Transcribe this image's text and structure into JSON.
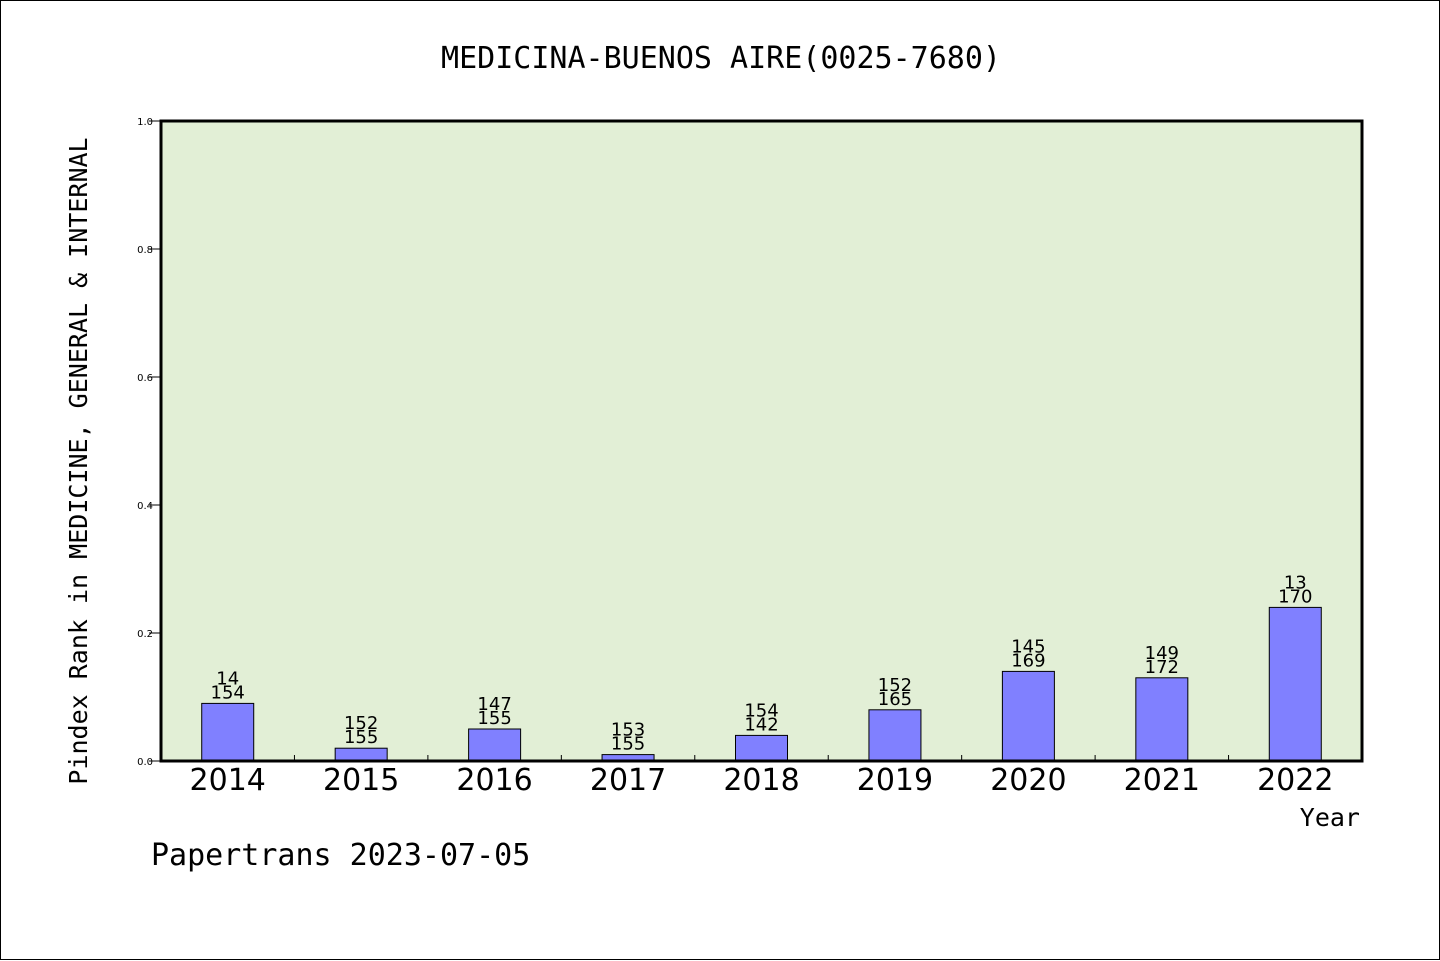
{
  "chart_data": {
    "type": "bar",
    "title": "MEDICINA-BUENOS AIRE(0025-7680)",
    "xlabel": "Year",
    "ylabel": "Pindex Rank in MEDICINE, GENERAL & INTERNAL",
    "ylim": [
      0,
      1.0
    ],
    "yticks": [
      "0.0",
      "0.2",
      "0.4",
      "0.6",
      "0.8",
      "1.0"
    ],
    "categories": [
      "2014",
      "2015",
      "2016",
      "2017",
      "2018",
      "2019",
      "2020",
      "2021",
      "2022"
    ],
    "values": [
      0.09,
      0.02,
      0.05,
      0.01,
      0.04,
      0.08,
      0.14,
      0.13,
      0.24
    ],
    "labels_top": [
      "14",
      "152",
      "147",
      "153",
      "154",
      "152",
      "145",
      "149",
      "13"
    ],
    "labels_bottom": [
      "154",
      "155",
      "155",
      "155",
      "142",
      "165",
      "169",
      "172",
      "170"
    ],
    "grid": false,
    "bar_color": "#8080ff",
    "plot_background": "#e2efd6"
  },
  "footer": {
    "note": "Papertrans 2023-07-05"
  }
}
